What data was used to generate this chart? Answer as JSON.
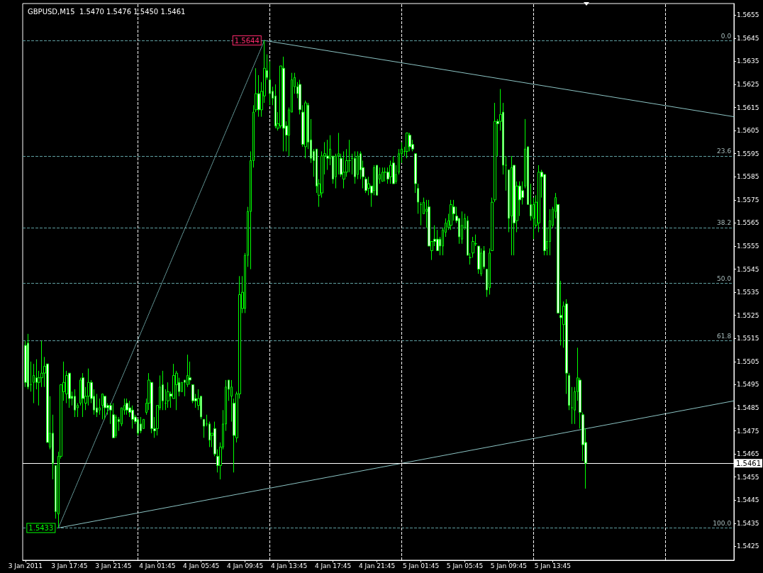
{
  "chart_data": {
    "type": "candlestick",
    "title": "GBPUSD,M15  1.5470 1.5476 1.5450 1.5461",
    "color": "#00ff00",
    "marker": "none",
    "x": [
      "2011-01-03T13:45",
      "2011-01-03T14:00",
      "2011-01-03T14:15",
      "2011-01-03T14:30",
      "2011-01-03T14:45",
      "2011-01-03T15:00",
      "2011-01-03T15:15",
      "2011-01-03T15:30",
      "2011-01-03T15:45",
      "2011-01-03T16:00",
      "2011-01-03T16:15",
      "2011-01-03T16:30",
      "2011-01-03T16:45",
      "2011-01-03T17:00",
      "2011-01-03T17:15",
      "2011-01-03T17:30",
      "2011-01-03T17:45",
      "2011-01-03T18:00",
      "2011-01-03T18:15",
      "2011-01-03T18:30",
      "2011-01-03T18:45",
      "2011-01-03T19:00",
      "2011-01-03T19:15",
      "2011-01-03T19:30",
      "2011-01-03T19:45",
      "2011-01-03T20:00",
      "2011-01-03T20:15",
      "2011-01-03T20:30",
      "2011-01-03T20:45",
      "2011-01-03T21:00",
      "2011-01-03T21:15",
      "2011-01-03T21:30",
      "2011-01-03T21:45",
      "2011-01-03T22:00",
      "2011-01-03T22:15",
      "2011-01-03T22:30",
      "2011-01-03T22:45",
      "2011-01-03T23:00",
      "2011-01-03T23:15",
      "2011-01-03T23:30",
      "2011-01-03T23:45",
      "2011-01-04T00:00",
      "2011-01-04T00:15",
      "2011-01-04T00:30",
      "2011-01-04T00:45",
      "2011-01-04T01:00",
      "2011-01-04T01:15",
      "2011-01-04T01:30",
      "2011-01-04T01:45",
      "2011-01-04T02:00",
      "2011-01-04T02:15",
      "2011-01-04T02:30",
      "2011-01-04T02:45",
      "2011-01-04T03:00",
      "2011-01-04T03:15",
      "2011-01-04T03:30",
      "2011-01-04T03:45",
      "2011-01-04T04:00",
      "2011-01-04T04:15",
      "2011-01-04T04:30",
      "2011-01-04T04:45",
      "2011-01-04T05:00",
      "2011-01-04T05:15",
      "2011-01-04T05:30",
      "2011-01-04T05:45",
      "2011-01-04T06:00",
      "2011-01-04T06:15",
      "2011-01-04T06:30",
      "2011-01-04T06:45",
      "2011-01-04T07:00",
      "2011-01-04T07:15",
      "2011-01-04T07:30",
      "2011-01-04T07:45",
      "2011-01-04T08:00",
      "2011-01-04T08:15",
      "2011-01-04T08:30",
      "2011-01-04T08:45",
      "2011-01-04T09:00",
      "2011-01-04T09:15",
      "2011-01-04T09:30",
      "2011-01-04T09:45",
      "2011-01-04T10:00",
      "2011-01-04T10:15",
      "2011-01-04T10:30",
      "2011-01-04T10:45",
      "2011-01-04T11:00",
      "2011-01-04T11:15",
      "2011-01-04T11:30",
      "2011-01-04T11:45",
      "2011-01-04T12:00",
      "2011-01-04T12:15",
      "2011-01-04T12:30",
      "2011-01-04T12:45",
      "2011-01-04T13:00",
      "2011-01-04T13:15",
      "2011-01-04T13:30",
      "2011-01-04T13:45",
      "2011-01-04T14:00",
      "2011-01-04T14:15",
      "2011-01-04T14:30",
      "2011-01-04T14:45",
      "2011-01-04T15:00",
      "2011-01-04T15:15",
      "2011-01-04T15:30",
      "2011-01-04T15:45",
      "2011-01-04T16:00",
      "2011-01-04T16:15",
      "2011-01-04T16:30",
      "2011-01-04T16:45",
      "2011-01-04T17:00",
      "2011-01-04T17:15",
      "2011-01-04T17:30",
      "2011-01-04T17:45",
      "2011-01-04T18:00",
      "2011-01-04T18:15",
      "2011-01-04T18:30",
      "2011-01-04T18:45",
      "2011-01-04T19:00",
      "2011-01-04T19:15",
      "2011-01-04T19:30",
      "2011-01-04T19:45",
      "2011-01-04T20:00",
      "2011-01-04T20:15",
      "2011-01-04T20:30",
      "2011-01-04T20:45",
      "2011-01-04T21:00",
      "2011-01-04T21:15",
      "2011-01-04T21:30",
      "2011-01-04T21:45",
      "2011-01-04T22:00",
      "2011-01-04T22:15",
      "2011-01-04T22:30",
      "2011-01-04T22:45",
      "2011-01-04T23:00",
      "2011-01-04T23:15",
      "2011-01-04T23:30",
      "2011-01-04T23:45",
      "2011-01-05T00:00",
      "2011-01-05T00:15",
      "2011-01-05T00:30",
      "2011-01-05T00:45",
      "2011-01-05T01:00",
      "2011-01-05T01:15",
      "2011-01-05T01:30",
      "2011-01-05T01:45",
      "2011-01-05T02:00",
      "2011-01-05T02:15",
      "2011-01-05T02:30",
      "2011-01-05T02:45",
      "2011-01-05T03:00",
      "2011-01-05T03:15",
      "2011-01-05T03:30",
      "2011-01-05T03:45",
      "2011-01-05T04:00",
      "2011-01-05T04:15",
      "2011-01-05T04:30",
      "2011-01-05T04:45",
      "2011-01-05T05:00",
      "2011-01-05T05:15",
      "2011-01-05T05:30",
      "2011-01-05T05:45",
      "2011-01-05T06:00",
      "2011-01-05T06:15",
      "2011-01-05T06:30",
      "2011-01-05T06:45",
      "2011-01-05T07:00",
      "2011-01-05T07:15",
      "2011-01-05T07:30",
      "2011-01-05T07:45",
      "2011-01-05T08:00",
      "2011-01-05T08:15",
      "2011-01-05T08:30",
      "2011-01-05T08:45",
      "2011-01-05T09:00",
      "2011-01-05T09:15",
      "2011-01-05T09:30",
      "2011-01-05T09:45",
      "2011-01-05T10:00",
      "2011-01-05T10:15",
      "2011-01-05T10:30",
      "2011-01-05T10:45",
      "2011-01-05T11:00",
      "2011-01-05T11:15",
      "2011-01-05T11:30",
      "2011-01-05T11:45",
      "2011-01-05T12:00",
      "2011-01-05T12:15",
      "2011-01-05T12:30",
      "2011-01-05T12:45",
      "2011-01-05T13:00",
      "2011-01-05T13:15",
      "2011-01-05T13:30",
      "2011-01-05T13:45",
      "2011-01-05T14:00",
      "2011-01-05T14:15",
      "2011-01-05T14:30",
      "2011-01-05T14:45",
      "2011-01-05T15:00",
      "2011-01-05T15:15",
      "2011-01-05T15:30",
      "2011-01-05T15:45",
      "2011-01-05T16:00",
      "2011-01-05T16:15",
      "2011-01-05T16:30",
      "2011-01-05T16:45"
    ],
    "ohlc": [
      [
        1.5512,
        1.5514,
        1.5494,
        1.5496
      ],
      [
        1.5513,
        1.5517,
        1.5493,
        1.5494
      ],
      [
        1.5495,
        1.5505,
        1.5492,
        1.5495
      ],
      [
        1.5496,
        1.5504,
        1.5487,
        1.5499
      ],
      [
        1.5498,
        1.5506,
        1.5493,
        1.5496
      ],
      [
        1.5496,
        1.5501,
        1.5486,
        1.5498
      ],
      [
        1.5498,
        1.5514,
        1.5494,
        1.55
      ],
      [
        1.55,
        1.5507,
        1.5494,
        1.5503
      ],
      [
        1.5504,
        1.5504,
        1.547,
        1.547
      ],
      [
        1.5468,
        1.549,
        1.5467,
        1.5474
      ],
      [
        1.5474,
        1.5482,
        1.5454,
        1.5461
      ],
      [
        1.546,
        1.546,
        1.5437,
        1.544
      ],
      [
        1.5439,
        1.5466,
        1.5433,
        1.5464
      ],
      [
        1.5464,
        1.5495,
        1.5463,
        1.5495
      ],
      [
        1.5492,
        1.5505,
        1.5488,
        1.5496
      ],
      [
        1.5491,
        1.5501,
        1.5487,
        1.5499
      ],
      [
        1.55,
        1.55,
        1.5485,
        1.5489
      ],
      [
        1.549,
        1.5492,
        1.5486,
        1.5489
      ],
      [
        1.549,
        1.5493,
        1.5481,
        1.5484
      ],
      [
        1.5485,
        1.5487,
        1.5481,
        1.5486
      ],
      [
        1.5487,
        1.5498,
        1.5486,
        1.5497
      ],
      [
        1.5498,
        1.55,
        1.5481,
        1.5489
      ],
      [
        1.5487,
        1.5494,
        1.5484,
        1.549
      ],
      [
        1.549,
        1.5502,
        1.5486,
        1.5496
      ],
      [
        1.5496,
        1.5497,
        1.5487,
        1.5489
      ],
      [
        1.549,
        1.5493,
        1.5482,
        1.5484
      ],
      [
        1.5485,
        1.5491,
        1.5481,
        1.5483
      ],
      [
        1.5484,
        1.5489,
        1.5482,
        1.5485
      ],
      [
        1.5486,
        1.5491,
        1.548,
        1.5491
      ],
      [
        1.549,
        1.549,
        1.548,
        1.5485
      ],
      [
        1.5486,
        1.5487,
        1.5482,
        1.5485
      ],
      [
        1.5486,
        1.5487,
        1.5478,
        1.5484
      ],
      [
        1.5482,
        1.5487,
        1.5472,
        1.5472
      ],
      [
        1.5473,
        1.5482,
        1.5472,
        1.5481
      ],
      [
        1.548,
        1.5481,
        1.5475,
        1.5479
      ],
      [
        1.5478,
        1.5485,
        1.5477,
        1.5485
      ],
      [
        1.5484,
        1.5489,
        1.5482,
        1.5486
      ],
      [
        1.5487,
        1.5489,
        1.5482,
        1.5484
      ],
      [
        1.5485,
        1.5488,
        1.5481,
        1.5483
      ],
      [
        1.5484,
        1.5486,
        1.5476,
        1.548
      ],
      [
        1.5481,
        1.5482,
        1.5478,
        1.5479
      ],
      [
        1.548,
        1.548,
        1.5473,
        1.5474
      ],
      [
        1.5478,
        1.5481,
        1.5474,
        1.5475
      ],
      [
        1.5476,
        1.548,
        1.5476,
        1.548
      ],
      [
        1.5483,
        1.5489,
        1.5482,
        1.5487
      ],
      [
        1.5487,
        1.55,
        1.5484,
        1.5497
      ],
      [
        1.5496,
        1.5496,
        1.5474,
        1.5476
      ],
      [
        1.5476,
        1.5481,
        1.5472,
        1.5475
      ],
      [
        1.5476,
        1.5486,
        1.5473,
        1.5486
      ],
      [
        1.5485,
        1.5499,
        1.5484,
        1.5494
      ],
      [
        1.5495,
        1.5501,
        1.5484,
        1.5488
      ],
      [
        1.5487,
        1.5493,
        1.5484,
        1.5487
      ],
      [
        1.5488,
        1.5496,
        1.5485,
        1.5492
      ],
      [
        1.5491,
        1.5492,
        1.5485,
        1.549
      ],
      [
        1.5489,
        1.5504,
        1.5489,
        1.5499
      ],
      [
        1.5495,
        1.5501,
        1.5484,
        1.55
      ],
      [
        1.5496,
        1.5498,
        1.549,
        1.5492
      ],
      [
        1.5492,
        1.5496,
        1.5492,
        1.5496
      ],
      [
        1.5497,
        1.5497,
        1.549,
        1.5496
      ],
      [
        1.5495,
        1.5508,
        1.5494,
        1.5499
      ],
      [
        1.5498,
        1.5505,
        1.5495,
        1.5497
      ],
      [
        1.5495,
        1.5495,
        1.5487,
        1.5488
      ],
      [
        1.5489,
        1.5491,
        1.5485,
        1.5488
      ],
      [
        1.5486,
        1.5493,
        1.5484,
        1.5489
      ],
      [
        1.549,
        1.549,
        1.548,
        1.5481
      ],
      [
        1.548,
        1.548,
        1.5472,
        1.5477
      ],
      [
        1.5478,
        1.5482,
        1.5477,
        1.5478
      ],
      [
        1.5478,
        1.5479,
        1.5468,
        1.5471
      ],
      [
        1.5473,
        1.5474,
        1.5468,
        1.5474
      ],
      [
        1.5476,
        1.5479,
        1.5464,
        1.5465
      ],
      [
        1.5464,
        1.5467,
        1.5457,
        1.546
      ],
      [
        1.546,
        1.547,
        1.5454,
        1.5468
      ],
      [
        1.5468,
        1.5484,
        1.5467,
        1.5478
      ],
      [
        1.5478,
        1.5497,
        1.5475,
        1.5494
      ],
      [
        1.5497,
        1.5497,
        1.5488,
        1.5493
      ],
      [
        1.549,
        1.5497,
        1.5479,
        1.5494
      ],
      [
        1.5487,
        1.5489,
        1.5457,
        1.5473
      ],
      [
        1.5472,
        1.5492,
        1.547,
        1.5491
      ],
      [
        1.5491,
        1.5542,
        1.5489,
        1.5534
      ],
      [
        1.5528,
        1.5542,
        1.5526,
        1.5535
      ],
      [
        1.5528,
        1.5552,
        1.5526,
        1.5551
      ],
      [
        1.5551,
        1.5572,
        1.5546,
        1.557
      ],
      [
        1.557,
        1.5596,
        1.5545,
        1.5592
      ],
      [
        1.5592,
        1.5616,
        1.5589,
        1.5613
      ],
      [
        1.5614,
        1.5632,
        1.5613,
        1.5621
      ],
      [
        1.5621,
        1.5629,
        1.5611,
        1.5614
      ],
      [
        1.5614,
        1.5626,
        1.5611,
        1.5622
      ],
      [
        1.562,
        1.5644,
        1.5617,
        1.5632
      ],
      [
        1.5631,
        1.5638,
        1.5627,
        1.5628
      ],
      [
        1.5627,
        1.5635,
        1.5616,
        1.5621
      ],
      [
        1.5622,
        1.5624,
        1.5616,
        1.5619
      ],
      [
        1.562,
        1.5625,
        1.5606,
        1.5607
      ],
      [
        1.5606,
        1.5613,
        1.5605,
        1.5608
      ],
      [
        1.5607,
        1.5633,
        1.5606,
        1.5633
      ],
      [
        1.5632,
        1.5637,
        1.5596,
        1.5606
      ],
      [
        1.5607,
        1.5609,
        1.5596,
        1.5603
      ],
      [
        1.5603,
        1.5615,
        1.5594,
        1.5614
      ],
      [
        1.5613,
        1.563,
        1.5613,
        1.5627
      ],
      [
        1.5624,
        1.563,
        1.5621,
        1.5628
      ],
      [
        1.5624,
        1.5626,
        1.5619,
        1.5621
      ],
      [
        1.5625,
        1.5627,
        1.5612,
        1.5614
      ],
      [
        1.5613,
        1.5616,
        1.5598,
        1.5599
      ],
      [
        1.5598,
        1.5618,
        1.5593,
        1.5617
      ],
      [
        1.5616,
        1.5617,
        1.5597,
        1.56
      ],
      [
        1.5601,
        1.561,
        1.5591,
        1.5593
      ],
      [
        1.5596,
        1.5597,
        1.5585,
        1.5592
      ],
      [
        1.5597,
        1.5597,
        1.5578,
        1.5581
      ],
      [
        1.5577,
        1.5584,
        1.5572,
        1.5582
      ],
      [
        1.5578,
        1.5596,
        1.5576,
        1.5594
      ],
      [
        1.5594,
        1.56,
        1.5586,
        1.5595
      ],
      [
        1.5594,
        1.5601,
        1.5588,
        1.5593
      ],
      [
        1.5593,
        1.5603,
        1.559,
        1.5597
      ],
      [
        1.5594,
        1.5594,
        1.5582,
        1.5584
      ],
      [
        1.5585,
        1.5595,
        1.558,
        1.5594
      ],
      [
        1.5594,
        1.5604,
        1.5586,
        1.5595
      ],
      [
        1.5593,
        1.5595,
        1.5585,
        1.5586
      ],
      [
        1.5584,
        1.5596,
        1.558,
        1.5587
      ],
      [
        1.5587,
        1.5597,
        1.5585,
        1.5592
      ],
      [
        1.5592,
        1.5601,
        1.5587,
        1.5592
      ],
      [
        1.5593,
        1.5595,
        1.5586,
        1.5593
      ],
      [
        1.5593,
        1.5596,
        1.5582,
        1.5585
      ],
      [
        1.5586,
        1.5596,
        1.5584,
        1.5594
      ],
      [
        1.5595,
        1.5596,
        1.5584,
        1.5588
      ],
      [
        1.5589,
        1.5592,
        1.558,
        1.5585
      ],
      [
        1.5584,
        1.5585,
        1.5578,
        1.5579
      ],
      [
        1.558,
        1.5585,
        1.5577,
        1.5582
      ],
      [
        1.5581,
        1.5581,
        1.5572,
        1.5578
      ],
      [
        1.5579,
        1.559,
        1.5577,
        1.5589
      ],
      [
        1.559,
        1.559,
        1.5577,
        1.5577
      ],
      [
        1.5584,
        1.5589,
        1.5582,
        1.5586
      ],
      [
        1.5583,
        1.5589,
        1.5583,
        1.5587
      ],
      [
        1.5587,
        1.5589,
        1.5583,
        1.5587
      ],
      [
        1.5587,
        1.5589,
        1.5582,
        1.5584
      ],
      [
        1.5585,
        1.5592,
        1.5582,
        1.559
      ],
      [
        1.5591,
        1.5594,
        1.5582,
        1.5582
      ],
      [
        1.5583,
        1.559,
        1.5582,
        1.5586
      ],
      [
        1.5587,
        1.5597,
        1.5586,
        1.5595
      ],
      [
        1.5595,
        1.56,
        1.5591,
        1.5597
      ],
      [
        1.5596,
        1.5598,
        1.5594,
        1.5596
      ],
      [
        1.5596,
        1.5604,
        1.5593,
        1.5604
      ],
      [
        1.5603,
        1.5604,
        1.5596,
        1.5598
      ],
      [
        1.5599,
        1.5601,
        1.5596,
        1.5597
      ],
      [
        1.5595,
        1.5595,
        1.5578,
        1.5582
      ],
      [
        1.558,
        1.5582,
        1.5569,
        1.5574
      ],
      [
        1.5573,
        1.5574,
        1.5564,
        1.5573
      ],
      [
        1.5569,
        1.5576,
        1.5569,
        1.5574
      ],
      [
        1.557,
        1.5575,
        1.5563,
        1.5571
      ],
      [
        1.5572,
        1.5575,
        1.5555,
        1.5555
      ],
      [
        1.5553,
        1.5557,
        1.5549,
        1.5557
      ],
      [
        1.5558,
        1.5564,
        1.5555,
        1.5557
      ],
      [
        1.5558,
        1.5562,
        1.5553,
        1.5553
      ],
      [
        1.5558,
        1.5559,
        1.5551,
        1.5555
      ],
      [
        1.5555,
        1.5563,
        1.5551,
        1.5562
      ],
      [
        1.5561,
        1.5567,
        1.5559,
        1.5565
      ],
      [
        1.5563,
        1.5569,
        1.5562,
        1.5566
      ],
      [
        1.5564,
        1.5575,
        1.5562,
        1.5573
      ],
      [
        1.5572,
        1.5575,
        1.5566,
        1.5569
      ],
      [
        1.5568,
        1.5572,
        1.5565,
        1.5566
      ],
      [
        1.5567,
        1.5567,
        1.5556,
        1.5559
      ],
      [
        1.5558,
        1.557,
        1.5556,
        1.5564
      ],
      [
        1.5563,
        1.5569,
        1.5562,
        1.5567
      ],
      [
        1.5566,
        1.5568,
        1.5551,
        1.5551
      ],
      [
        1.555,
        1.5552,
        1.5547,
        1.555
      ],
      [
        1.5552,
        1.5559,
        1.555,
        1.5557
      ],
      [
        1.5556,
        1.556,
        1.5555,
        1.5556
      ],
      [
        1.5555,
        1.5555,
        1.5543,
        1.5545
      ],
      [
        1.5543,
        1.5554,
        1.5542,
        1.5552
      ],
      [
        1.5553,
        1.5555,
        1.5545,
        1.5546
      ],
      [
        1.5545,
        1.5545,
        1.5533,
        1.5536
      ],
      [
        1.5537,
        1.5554,
        1.5534,
        1.5552
      ],
      [
        1.5553,
        1.5576,
        1.5553,
        1.5574
      ],
      [
        1.5575,
        1.5617,
        1.5574,
        1.5609
      ],
      [
        1.5609,
        1.561,
        1.5594,
        1.5608
      ],
      [
        1.5609,
        1.5623,
        1.5605,
        1.5612
      ],
      [
        1.5613,
        1.5617,
        1.5586,
        1.559
      ],
      [
        1.559,
        1.5594,
        1.5579,
        1.559
      ],
      [
        1.5588,
        1.5588,
        1.5561,
        1.5567
      ],
      [
        1.5568,
        1.5594,
        1.5551,
        1.5589
      ],
      [
        1.559,
        1.559,
        1.5551,
        1.5565
      ],
      [
        1.5566,
        1.5583,
        1.5561,
        1.5581
      ],
      [
        1.5581,
        1.5583,
        1.5568,
        1.5575
      ],
      [
        1.5579,
        1.5583,
        1.5573,
        1.5576
      ],
      [
        1.5581,
        1.561,
        1.558,
        1.5597
      ],
      [
        1.5598,
        1.5598,
        1.5573,
        1.5573
      ],
      [
        1.5573,
        1.5582,
        1.5566,
        1.5568
      ],
      [
        1.5567,
        1.5576,
        1.5558,
        1.5573
      ],
      [
        1.5564,
        1.5577,
        1.5563,
        1.5574
      ],
      [
        1.5565,
        1.559,
        1.5561,
        1.5587
      ],
      [
        1.5587,
        1.5588,
        1.5576,
        1.5585
      ],
      [
        1.5586,
        1.5586,
        1.5551,
        1.5553
      ],
      [
        1.5554,
        1.5563,
        1.5551,
        1.5557
      ],
      [
        1.5557,
        1.5571,
        1.5551,
        1.5566
      ],
      [
        1.5564,
        1.5572,
        1.5563,
        1.5571
      ],
      [
        1.557,
        1.5578,
        1.5567,
        1.5576
      ],
      [
        1.5573,
        1.5573,
        1.5526,
        1.5526
      ],
      [
        1.5525,
        1.554,
        1.5512,
        1.5524
      ],
      [
        1.5521,
        1.5531,
        1.5511,
        1.5529
      ],
      [
        1.553,
        1.5532,
        1.5491,
        1.55
      ],
      [
        1.5499,
        1.55,
        1.5484,
        1.5486
      ],
      [
        1.5485,
        1.5494,
        1.5478,
        1.5485
      ],
      [
        1.5484,
        1.5494,
        1.5478,
        1.5492
      ],
      [
        1.5492,
        1.5511,
        1.5488,
        1.5498
      ],
      [
        1.5497,
        1.5498,
        1.5476,
        1.5483
      ],
      [
        1.5482,
        1.5483,
        1.5462,
        1.5469
      ],
      [
        1.547,
        1.5476,
        1.545,
        1.5461
      ]
    ],
    "series": [
      {
        "type": "line",
        "color": "#8cc4c4",
        "line_style": "solid",
        "x": [
          "2011-01-04T11:30",
          "2011-01-06T06:15"
        ],
        "values": [
          1.5644,
          1.5611
        ]
      },
      {
        "type": "line",
        "color": "#8cc4c4",
        "line_style": "solid",
        "x": [
          "2011-01-03T16:45",
          "2011-01-06T06:15"
        ],
        "values": [
          1.5433,
          1.5488
        ]
      },
      {
        "type": "line",
        "color": "#6fa8a8",
        "line_style": "dotted",
        "x": [
          "2011-01-03T16:45",
          "2011-01-04T11:30"
        ],
        "values": [
          1.5433,
          1.5644
        ]
      }
    ],
    "xlim": [
      "2011-01-03T13:30",
      "2011-01-06T06:15"
    ],
    "xticks": [
      {
        "value": "2011-01-03T13:45",
        "label": "3 Jan 2011"
      },
      {
        "value": "2011-01-03T17:45",
        "label": "3 Jan 17:45"
      },
      {
        "value": "2011-01-03T21:45",
        "label": "3 Jan 21:45"
      },
      {
        "value": "2011-01-04T01:45",
        "label": "4 Jan 01:45"
      },
      {
        "value": "2011-01-04T05:45",
        "label": "4 Jan 05:45"
      },
      {
        "value": "2011-01-04T09:45",
        "label": "4 Jan 09:45"
      },
      {
        "value": "2011-01-04T13:45",
        "label": "4 Jan 13:45"
      },
      {
        "value": "2011-01-04T17:45",
        "label": "4 Jan 17:45"
      },
      {
        "value": "2011-01-04T21:45",
        "label": "4 Jan 21:45"
      },
      {
        "value": "2011-01-05T01:45",
        "label": "5 Jan 01:45"
      },
      {
        "value": "2011-01-05T05:45",
        "label": "5 Jan 05:45"
      },
      {
        "value": "2011-01-05T09:45",
        "label": "5 Jan 09:45"
      },
      {
        "value": "2011-01-05T13:45",
        "label": "5 Jan 13:45"
      }
    ],
    "ylim": [
      1.5419,
      1.566
    ],
    "yticks": [
      1.5425,
      1.5435,
      1.5445,
      1.5455,
      1.5465,
      1.5475,
      1.5485,
      1.5495,
      1.5505,
      1.5515,
      1.5525,
      1.5535,
      1.5545,
      1.5555,
      1.5565,
      1.5575,
      1.5585,
      1.5595,
      1.5605,
      1.5615,
      1.5625,
      1.5635,
      1.5645,
      1.5655
    ],
    "ref_lines": [
      {
        "axis": "y",
        "value": 1.5644,
        "color": "#5f9ea0",
        "line_style": "dashed"
      },
      {
        "axis": "y",
        "value": 1.5594,
        "color": "#5f9ea0",
        "line_style": "dashed"
      },
      {
        "axis": "y",
        "value": 1.5563,
        "color": "#5f9ea0",
        "line_style": "dashed"
      },
      {
        "axis": "y",
        "value": 1.5539,
        "color": "#5f9ea0",
        "line_style": "dashed"
      },
      {
        "axis": "y",
        "value": 1.5514,
        "color": "#5f9ea0",
        "line_style": "dashed"
      },
      {
        "axis": "y",
        "value": 1.5433,
        "color": "#5f9ea0",
        "line_style": "dashed"
      },
      {
        "axis": "y",
        "value": 1.5461,
        "label": "1.5461",
        "color": "#ffffff",
        "line_style": "solid"
      },
      {
        "axis": "x",
        "value": "2011-01-04T00:00",
        "color": "#ffffff",
        "line_style": "dashed"
      },
      {
        "axis": "x",
        "value": "2011-01-04T12:00",
        "color": "#ffffff",
        "line_style": "dashed"
      },
      {
        "axis": "x",
        "value": "2011-01-05T00:00",
        "color": "#ffffff",
        "line_style": "dashed"
      },
      {
        "axis": "x",
        "value": "2011-01-05T12:00",
        "color": "#ffffff",
        "line_style": "dashed"
      },
      {
        "axis": "x",
        "value": "2011-01-06T00:00",
        "color": "#ffffff",
        "line_style": "dashed"
      }
    ],
    "annotations": [
      {
        "text": "1.5644",
        "x": "2011-01-04T11:30",
        "y": 1.5644
      },
      {
        "text": "1.5433",
        "x": "2011-01-03T16:45",
        "y": 1.5433
      },
      {
        "text": "0.0",
        "x": "2011-01-06T06:00",
        "y": 1.5644
      },
      {
        "text": "23.6",
        "x": "2011-01-06T06:00",
        "y": 1.5594
      },
      {
        "text": "38.2",
        "x": "2011-01-06T06:00",
        "y": 1.5563
      },
      {
        "text": "50.0",
        "x": "2011-01-06T06:00",
        "y": 1.5539
      },
      {
        "text": "61.8",
        "x": "2011-01-06T06:00",
        "y": 1.5514
      },
      {
        "text": "100.0",
        "x": "2011-01-06T06:00",
        "y": 1.5433
      }
    ]
  }
}
